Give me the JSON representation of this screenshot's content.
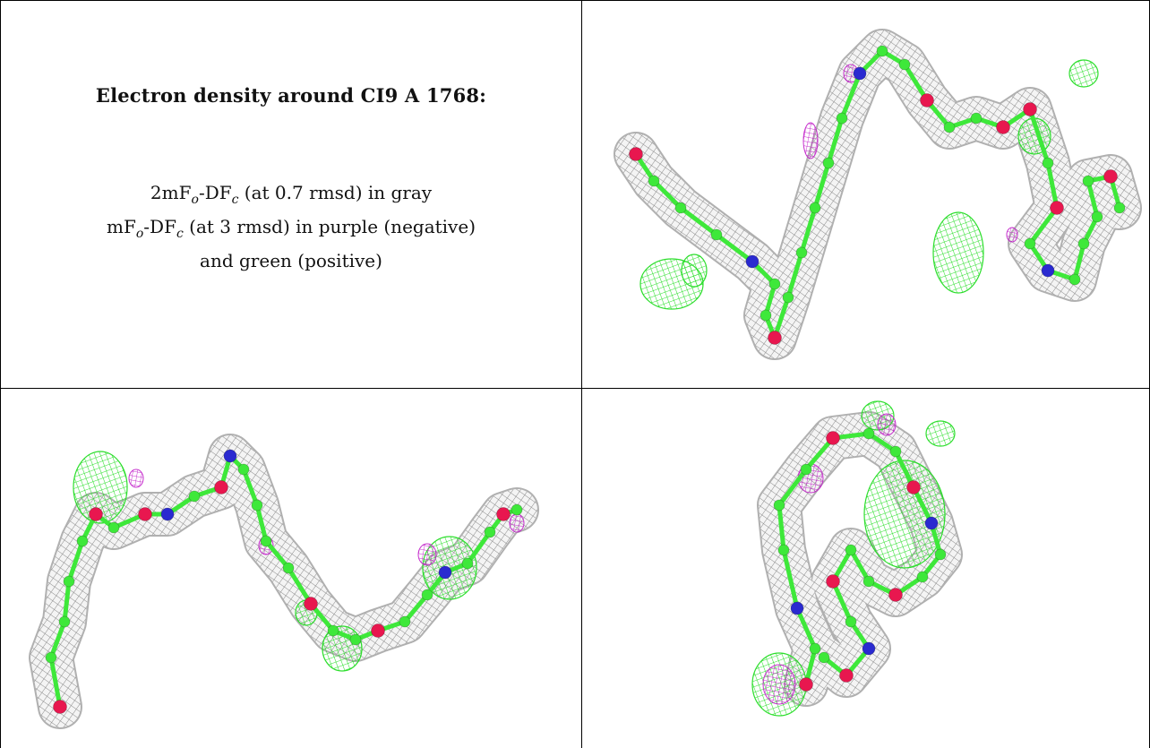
{
  "caption": {
    "title": "Electron density around CI9 A 1768:",
    "line1": {
      "prefix": "2mF",
      "sub1": "o",
      "mid": "-DF",
      "sub2": "c",
      "suffix": " (at 0.7 rmsd) in gray"
    },
    "line2": {
      "prefix": "mF",
      "sub1": "o",
      "mid": "-DF",
      "sub2": "c",
      "suffix": " (at 3 rmsd) in purple (negative)"
    },
    "line3": "and green (positive)"
  },
  "colors": {
    "mesh_gray": "#8a8a8a",
    "carbon_green": "#3ee83a",
    "oxygen_red": "#e8174f",
    "nitrogen_blue": "#2a2ad0",
    "positive_green": "#22dd22",
    "negative_purple": "#c01ac8"
  },
  "views": [
    "view-1",
    "view-2",
    "view-3"
  ]
}
